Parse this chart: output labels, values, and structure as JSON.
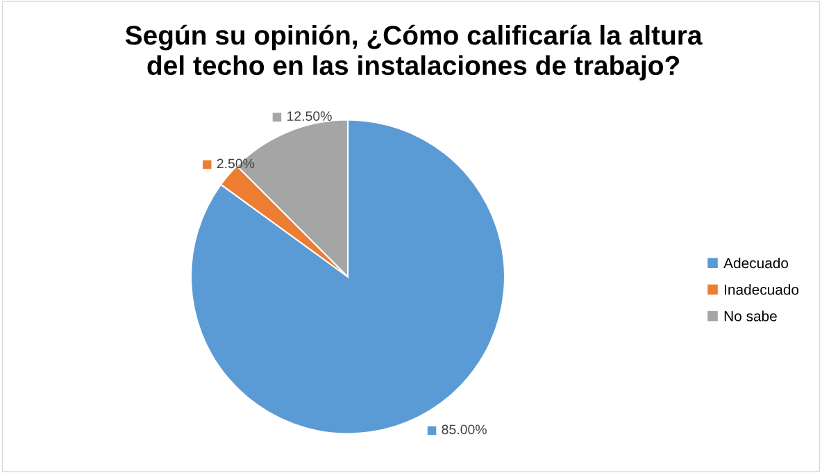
{
  "chart_data": {
    "type": "pie",
    "title": "Según su opinión, ¿Cómo calificaría la altura\ndel techo en las instalaciones de trabajo?",
    "categories": [
      "Adecuado",
      "Inadecuado",
      "No sabe"
    ],
    "values": [
      85,
      2.5,
      12.5
    ],
    "colors": [
      "#5b9bd5",
      "#ed7d31",
      "#a5a5a5"
    ],
    "value_labels": [
      "85.00%",
      "2.50%",
      "12.50%"
    ],
    "legend": "right"
  }
}
